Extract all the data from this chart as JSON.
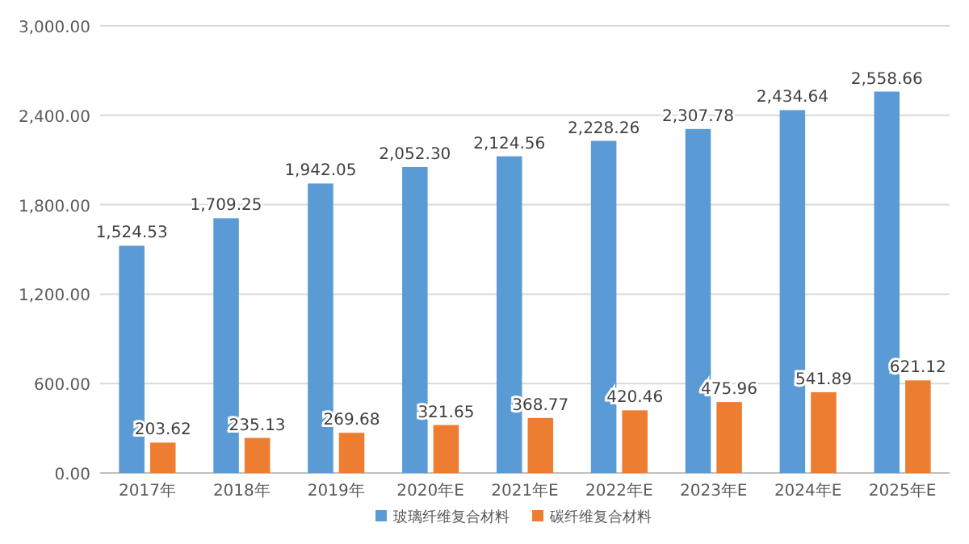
{
  "chart_data": {
    "type": "bar",
    "categories": [
      "2017年",
      "2018年",
      "2019年",
      "2020年E",
      "2021年E",
      "2022年E",
      "2023年E",
      "2024年E",
      "2025年E"
    ],
    "series": [
      {
        "name": "玻璃纤维复合材料",
        "color": "#5b9bd5",
        "values": [
          1524.53,
          1709.25,
          1942.05,
          2052.3,
          2124.56,
          2228.26,
          2307.78,
          2434.64,
          2558.66
        ],
        "value_labels": [
          "1,524.53",
          "1,709.25",
          "1,942.05",
          "2,052.30",
          "2,124.56",
          "2,228.26",
          "2,307.78",
          "2,434.64",
          "2,558.66"
        ]
      },
      {
        "name": "碳纤维复合材料",
        "color": "#ed7d31",
        "values": [
          203.62,
          235.13,
          269.68,
          321.65,
          368.77,
          420.46,
          475.96,
          541.89,
          621.12
        ],
        "value_labels": [
          "203.62",
          "235.13",
          "269.68",
          "321.65",
          "368.77",
          "420.46",
          "475.96",
          "541.89",
          "621.12"
        ]
      }
    ],
    "ylim": [
      0,
      3000
    ],
    "yticks": [
      {
        "value": 0,
        "label": "0.00"
      },
      {
        "value": 600,
        "label": "600.00"
      },
      {
        "value": 1200,
        "label": "1,200.00"
      },
      {
        "value": 1800,
        "label": "1,800.00"
      },
      {
        "value": 2400,
        "label": "2,400.00"
      },
      {
        "value": 3000,
        "label": "3,000.00"
      }
    ],
    "grid": "y",
    "legend": "bottom"
  }
}
